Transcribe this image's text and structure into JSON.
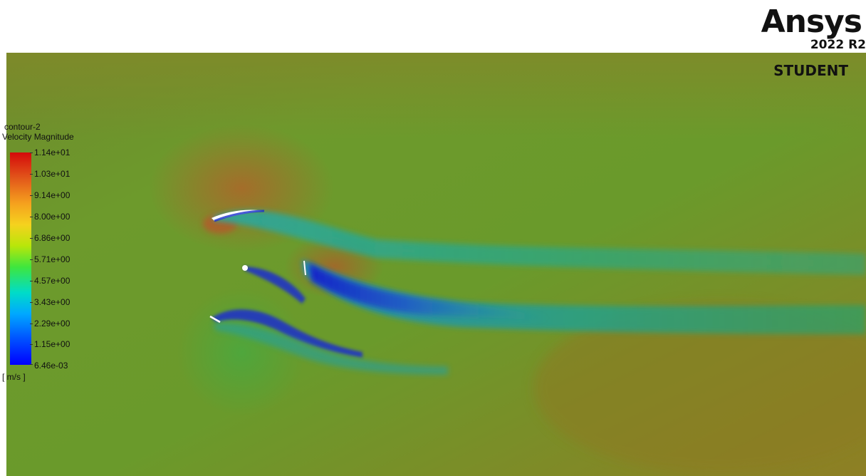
{
  "branding": {
    "product": "Ansys",
    "version": "2022 R2",
    "edition": "STUDENT"
  },
  "legend": {
    "title": "contour-2",
    "quantity": "Velocity Magnitude",
    "unit": "[ m/s ]",
    "labels": [
      "1.14e+01",
      "1.03e+01",
      "9.14e+00",
      "8.00e+00",
      "6.86e+00",
      "5.71e+00",
      "4.57e+00",
      "3.43e+00",
      "2.29e+00",
      "1.15e+00",
      "6.46e-03"
    ],
    "colormap": [
      "#0000ff",
      "#00a8ff",
      "#3ee63e",
      "#f5d21e",
      "#d40a0a"
    ]
  },
  "colors": {
    "field_green": "#5f9a2b",
    "field_olive": "#8a7f25",
    "wake_cyan": "#2aa77a",
    "wake_blue": "#1a2fcc",
    "high_velocity": "#a0682a",
    "blade": "#ffffff"
  }
}
